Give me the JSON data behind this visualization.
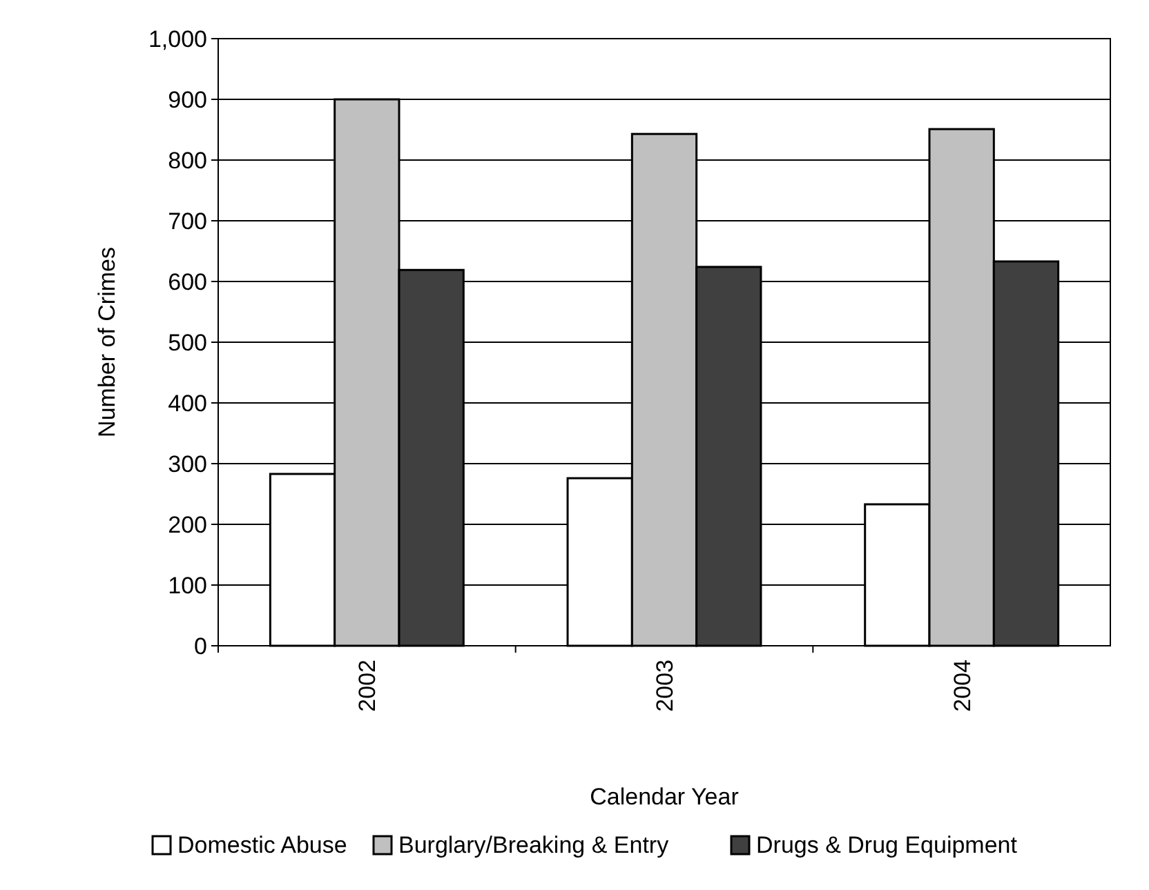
{
  "chart_data": {
    "type": "bar",
    "xlabel": "Calendar Year",
    "ylabel": "Number of Crimes",
    "categories": [
      "2002",
      "2003",
      "2004"
    ],
    "series": [
      {
        "name": "Domestic Abuse",
        "color": "#ffffff",
        "values": [
          283,
          276,
          233
        ]
      },
      {
        "name": "Burglary/Breaking & Entry",
        "color": "#c0c0c0",
        "values": [
          900,
          843,
          851
        ]
      },
      {
        "name": "Drugs & Drug Equipment",
        "color": "#404040",
        "values": [
          619,
          624,
          633
        ]
      }
    ],
    "ylim": [
      0,
      1000
    ],
    "yticks": [
      0,
      100,
      200,
      300,
      400,
      500,
      600,
      700,
      800,
      {
        "value": 900,
        "label": "900"
      },
      {
        "value": 1000,
        "label": "1,000"
      }
    ],
    "grid": "y",
    "legend": "bottom"
  }
}
